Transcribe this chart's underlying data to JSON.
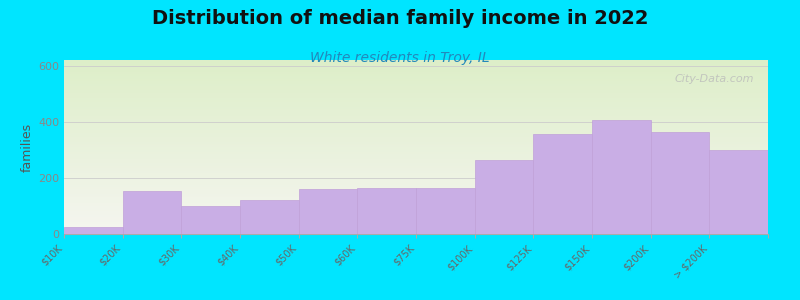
{
  "title": "Distribution of median family income in 2022",
  "subtitle": "White residents in Troy, IL",
  "categories": [
    "$10K",
    "$20K",
    "$30K",
    "$40K",
    "$50K",
    "$60K",
    "$75K",
    "$100K",
    "$125K",
    "$150K",
    "$200K",
    "> $200K"
  ],
  "values": [
    25,
    155,
    100,
    120,
    160,
    165,
    165,
    265,
    355,
    405,
    365,
    300
  ],
  "bar_color": "#c9aee5",
  "bar_edge_color": "#c0a0d8",
  "title_fontsize": 14,
  "subtitle_fontsize": 10,
  "subtitle_color": "#2288bb",
  "ylabel": "families",
  "ylabel_fontsize": 9,
  "ylabel_color": "#555555",
  "tick_label_fontsize": 7,
  "tick_label_color": "#666666",
  "ytick_color": "#888888",
  "ytick_fontsize": 8,
  "ylim": [
    0,
    620
  ],
  "yticks": [
    0,
    200,
    400,
    600
  ],
  "grid_color": "#cccccc",
  "bg_top_color": "#ddeec8",
  "bg_bottom_color": "#f5f5f0",
  "outer_bg": "#00e5ff",
  "watermark": "City-Data.com"
}
